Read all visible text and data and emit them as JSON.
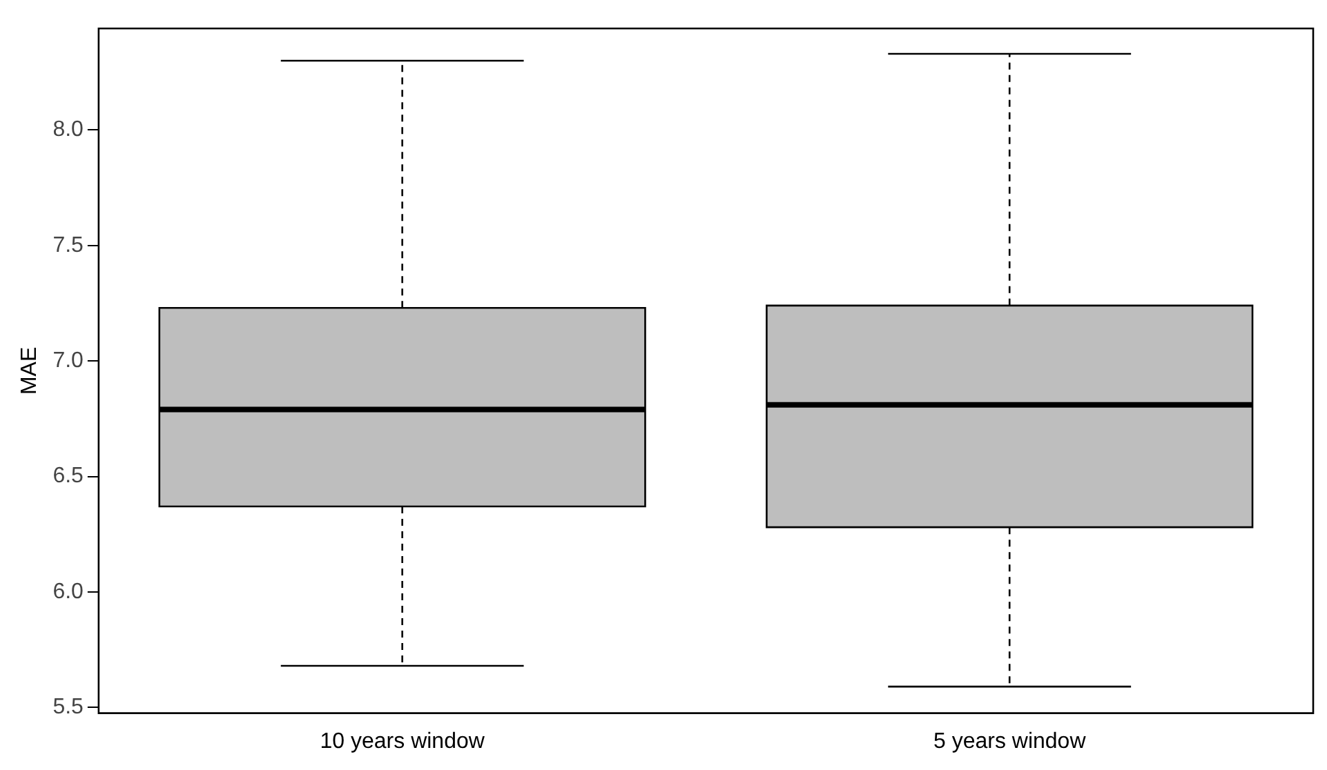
{
  "chart_data": {
    "type": "box",
    "ylabel": "MAE",
    "categories": [
      "10 years window",
      "5 years window"
    ],
    "boxes": [
      {
        "low": 5.68,
        "q1": 6.37,
        "median": 6.79,
        "q3": 7.23,
        "high": 8.3
      },
      {
        "low": 5.59,
        "q1": 6.28,
        "median": 6.81,
        "q3": 7.24,
        "high": 8.33
      }
    ],
    "color": "#bebebe",
    "ylim": [
      5.475,
      8.44
    ],
    "yticks": [
      5.5,
      {
        "value": 6,
        "label": "6.0"
      },
      6.5,
      {
        "value": 7,
        "label": "7.0"
      },
      7.5,
      {
        "value": 8,
        "label": "8.0"
      }
    ],
    "grid": false
  }
}
